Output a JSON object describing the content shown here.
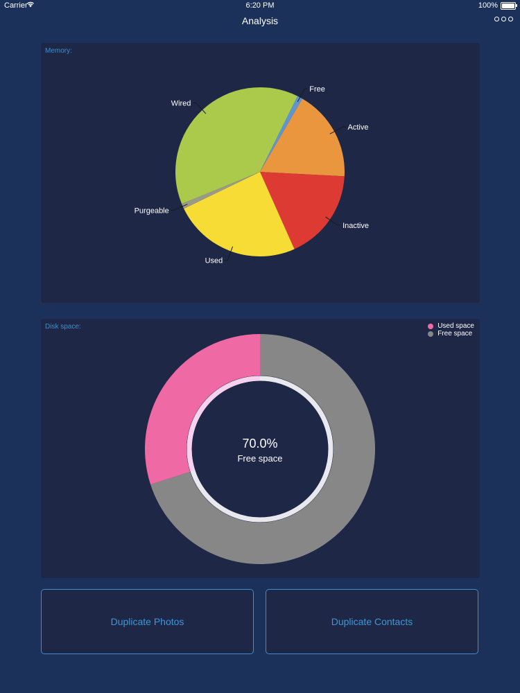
{
  "status_bar": {
    "carrier": "Carrier",
    "time": "6:20 PM",
    "battery": "100%"
  },
  "nav": {
    "title": "Analysis"
  },
  "memory": {
    "label": "Memory:"
  },
  "disk": {
    "label": "Disk space:"
  },
  "chart_data": [
    {
      "type": "pie",
      "title": "Memory:",
      "labels": [
        "Active",
        "Inactive",
        "Used",
        "Purgeable",
        "Wired",
        "Free"
      ],
      "values": [
        17.5,
        17.5,
        24.5,
        1,
        38.5,
        1
      ],
      "colors": [
        "#e9963f",
        "#dc3a33",
        "#f6dc34",
        "#9a9a8a",
        "#abc94a",
        "#5e95d2"
      ]
    },
    {
      "type": "pie",
      "title": "Disk space:",
      "labels": [
        "Used space",
        "Free space"
      ],
      "values": [
        30.0,
        70.0
      ],
      "colors": [
        "#ef6aa4",
        "#878787"
      ],
      "center_value": "70.0%",
      "center_label": "Free space",
      "legend_position": "top-right"
    }
  ],
  "buttons": {
    "photos": "Duplicate Photos",
    "contacts": "Duplicate Contacts"
  }
}
